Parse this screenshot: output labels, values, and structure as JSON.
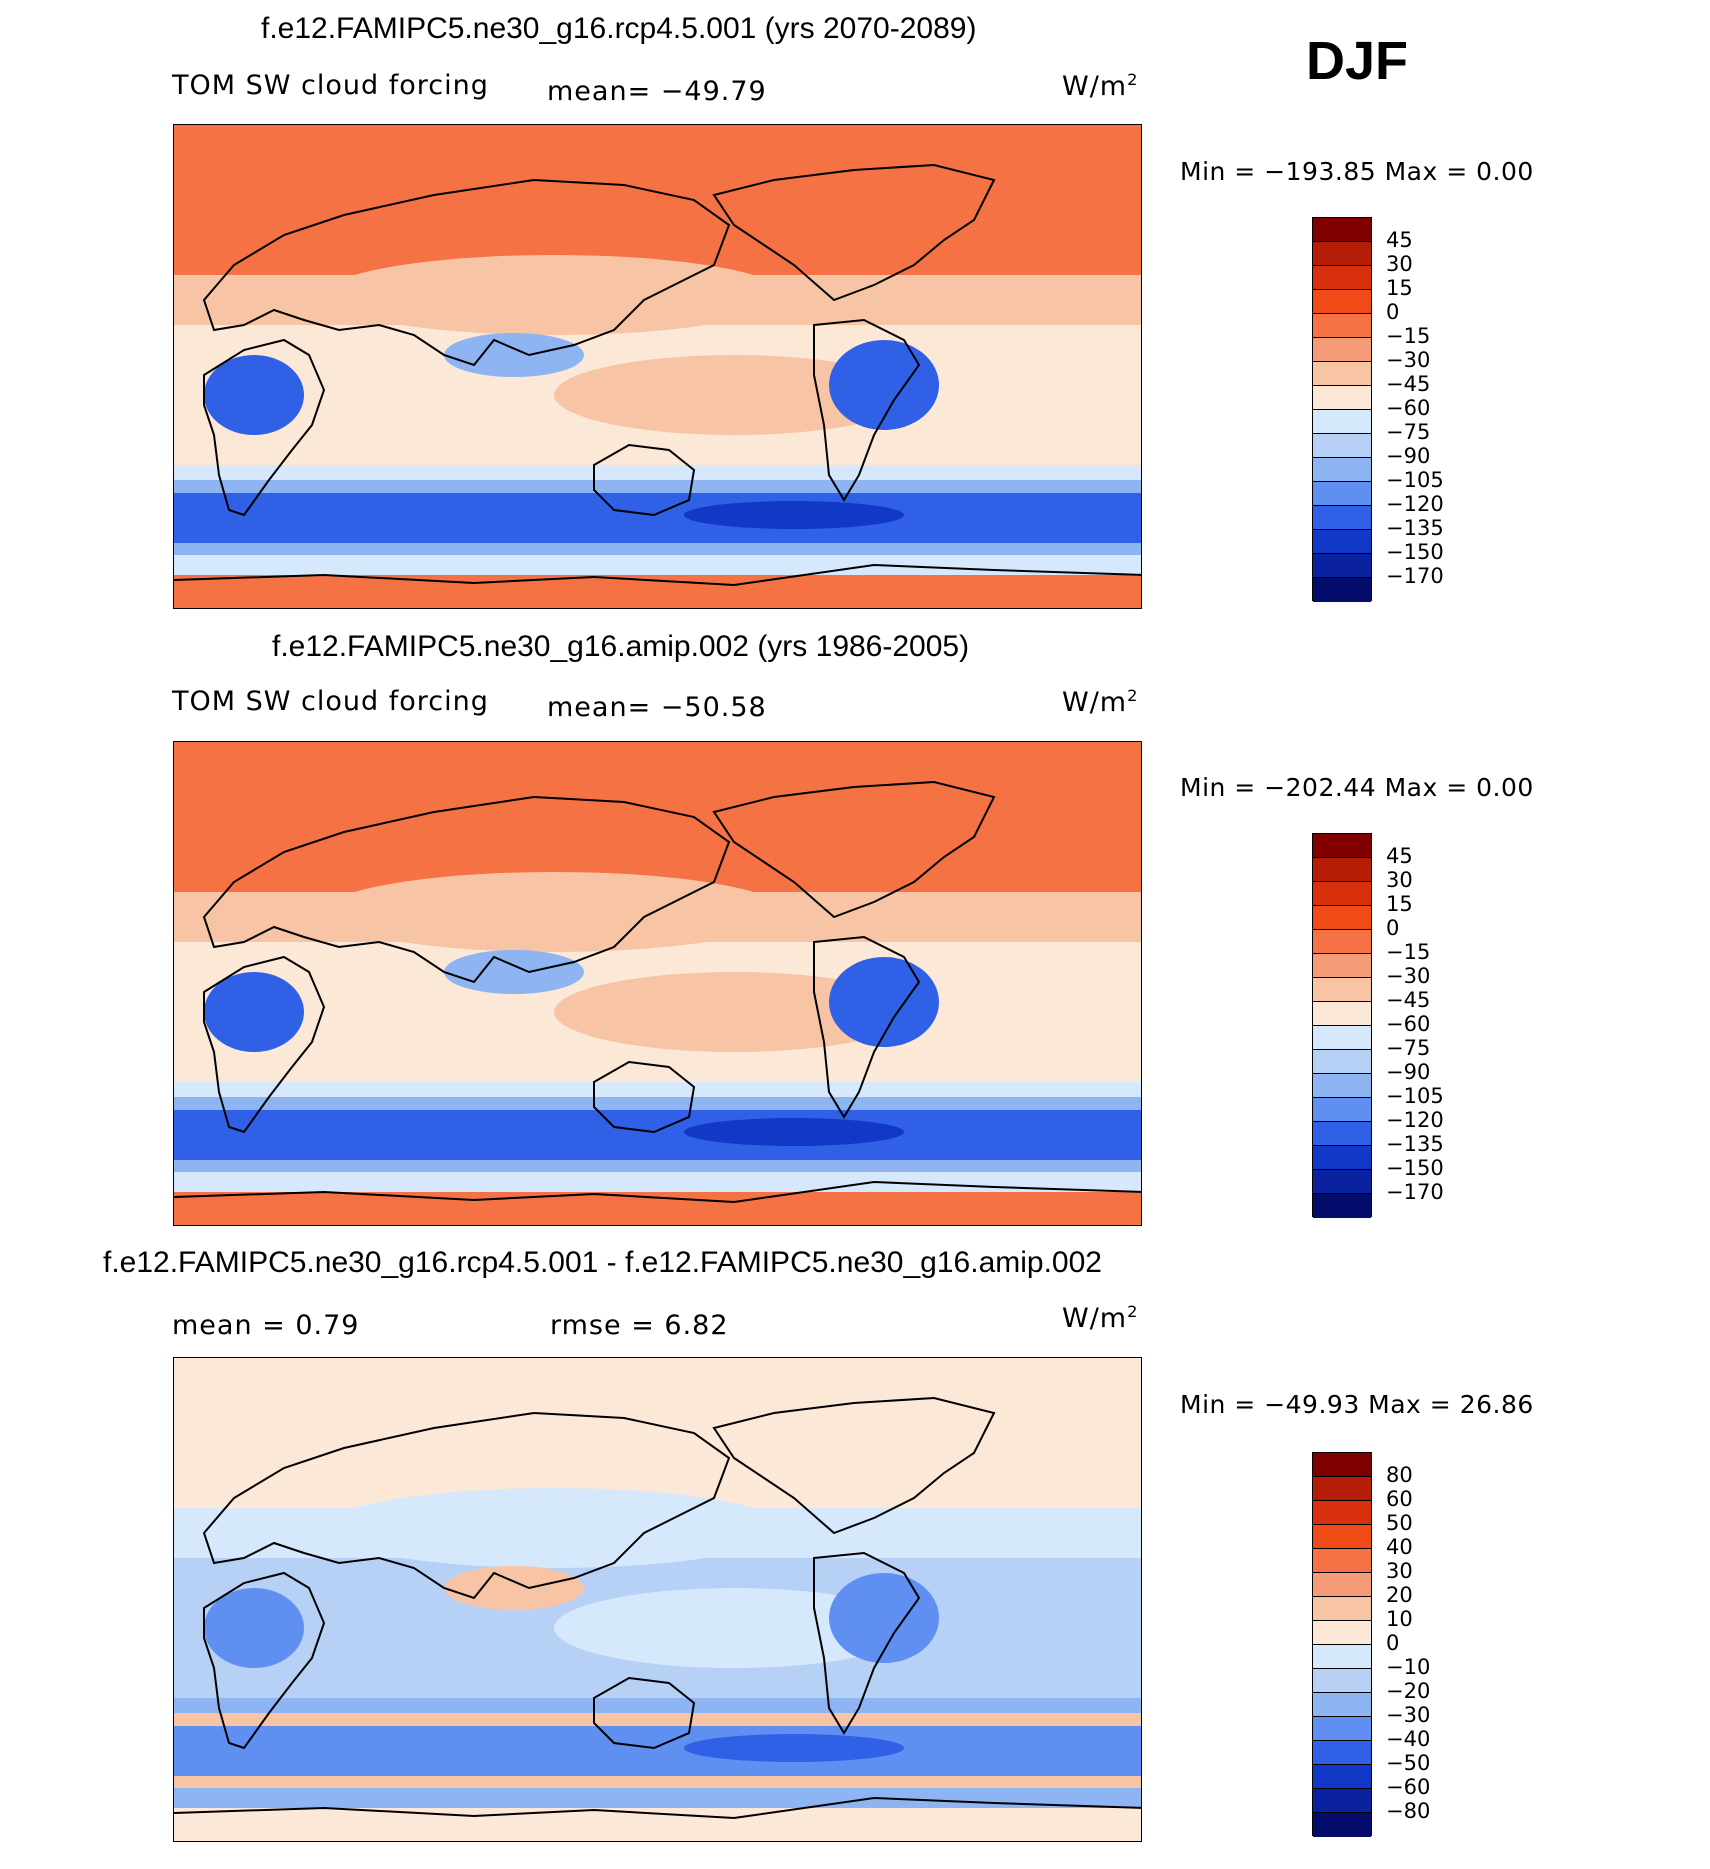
{
  "season": "DJF",
  "panels": [
    {
      "title": "f.e12.FAMIPC5.ne30_g16.rcp4.5.001 (yrs 2070-2089)",
      "left_label": "TOM SW cloud forcing",
      "center_label": "mean= −49.79",
      "units": "W/m",
      "units_sup": "2",
      "minmax": "Min  =  −193.85  Max  =     0.00",
      "colorbar": {
        "labels": [
          "45",
          "30",
          "15",
          "0",
          "−15",
          "−30",
          "−45",
          "−60",
          "−75",
          "−90",
          "−105",
          "−120",
          "−135",
          "−150",
          "−170"
        ],
        "colors": [
          "#800000",
          "#b51c06",
          "#d8300d",
          "#f04a17",
          "#f47244",
          "#f59b77",
          "#f8c4a6",
          "#fce8d7",
          "#d6e8fb",
          "#b6d0f6",
          "#8eb4f1",
          "#5f8ff0",
          "#2f60e6",
          "#1238c8",
          "#0b22a0",
          "#030c6a"
        ]
      },
      "colors": {
        "bg": "#f47244",
        "band1": "#f8c4a6",
        "band2": "#fce8d7",
        "band3": "#d6e8fb",
        "band4": "#8eb4f1",
        "band5": "#2f60e6",
        "band6": "#1238c8"
      }
    },
    {
      "title": "f.e12.FAMIPC5.ne30_g16.amip.002 (yrs 1986-2005)",
      "left_label": "TOM SW cloud forcing",
      "center_label": "mean= −50.58",
      "units": "W/m",
      "units_sup": "2",
      "minmax": "Min  =  −202.44  Max  =     0.00",
      "colorbar": {
        "labels": [
          "45",
          "30",
          "15",
          "0",
          "−15",
          "−30",
          "−45",
          "−60",
          "−75",
          "−90",
          "−105",
          "−120",
          "−135",
          "−150",
          "−170"
        ],
        "colors": [
          "#800000",
          "#b51c06",
          "#d8300d",
          "#f04a17",
          "#f47244",
          "#f59b77",
          "#f8c4a6",
          "#fce8d7",
          "#d6e8fb",
          "#b6d0f6",
          "#8eb4f1",
          "#5f8ff0",
          "#2f60e6",
          "#1238c8",
          "#0b22a0",
          "#030c6a"
        ]
      },
      "colors": {
        "bg": "#f47244",
        "band1": "#f8c4a6",
        "band2": "#fce8d7",
        "band3": "#d6e8fb",
        "band4": "#8eb4f1",
        "band5": "#2f60e6",
        "band6": "#1238c8"
      }
    },
    {
      "title": "f.e12.FAMIPC5.ne30_g16.rcp4.5.001 - f.e12.FAMIPC5.ne30_g16.amip.002",
      "left_label": "mean  =     0.79",
      "center_label": "rmse  =     6.82",
      "units": "W/m",
      "units_sup": "2",
      "minmax": "Min  =  −49.93  Max  =   26.86",
      "colorbar": {
        "labels": [
          "80",
          "60",
          "50",
          "40",
          "30",
          "20",
          "10",
          "0",
          "−10",
          "−20",
          "−30",
          "−40",
          "−50",
          "−60",
          "−80"
        ],
        "colors": [
          "#800000",
          "#b51c06",
          "#d8300d",
          "#f04a17",
          "#f47244",
          "#f59b77",
          "#f8c4a6",
          "#fce8d7",
          "#d6e8fb",
          "#b6d0f6",
          "#8eb4f1",
          "#5f8ff0",
          "#2f60e6",
          "#1238c8",
          "#0b22a0",
          "#030c6a"
        ]
      },
      "colors": {
        "bg": "#fce8d7",
        "band1": "#d6e8fb",
        "band2": "#b6d0f6",
        "band3": "#8eb4f1",
        "band4": "#f8c4a6",
        "band5": "#5f8ff0",
        "band6": "#2f60e6"
      }
    }
  ]
}
